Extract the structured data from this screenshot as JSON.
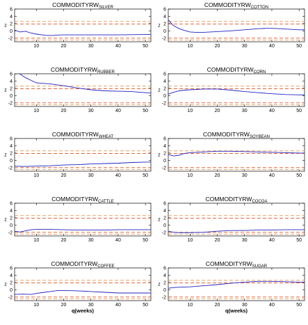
{
  "figure": {
    "yticks": [
      -2,
      0,
      2,
      4,
      6
    ],
    "xticks": [
      10,
      20,
      30,
      40,
      50
    ],
    "xlim": [
      2,
      52
    ],
    "ylim": [
      -3,
      6
    ],
    "colors": {
      "series": "#1f1fbf",
      "band_inner": "#d9531e",
      "band_outer": "#e7a066",
      "axes": "#000000"
    }
  },
  "chart_data": [
    {
      "type": "line",
      "title": "COMMODITYRW",
      "subtitle": "SILVER",
      "xlabel": "",
      "x": [
        2,
        4,
        6,
        8,
        10,
        12,
        14,
        16,
        18,
        20,
        25,
        30,
        35,
        40,
        45,
        50,
        52
      ],
      "y": [
        0.2,
        -0.3,
        -0.1,
        -0.6,
        -0.9,
        -1.1,
        -1.25,
        -1.25,
        -1.15,
        -1.1,
        -1.1,
        -1.1,
        -1.1,
        -1.1,
        -1.05,
        -1.0,
        -1.0
      ],
      "bands": [
        -2.5,
        -2.0,
        1.9,
        2.6
      ]
    },
    {
      "type": "line",
      "title": "COMMODITYRW",
      "subtitle": "COTTON",
      "xlabel": "",
      "x": [
        2,
        4,
        6,
        8,
        10,
        12,
        15,
        20,
        25,
        30,
        35,
        38,
        40,
        45,
        50,
        52
      ],
      "y": [
        3.0,
        1.4,
        0.6,
        0.1,
        -0.3,
        -0.4,
        -0.4,
        -0.2,
        0.0,
        0.3,
        0.6,
        0.7,
        0.7,
        0.5,
        0.3,
        0.3
      ],
      "bands": [
        -2.5,
        -2.0,
        1.9,
        2.6
      ]
    },
    {
      "type": "line",
      "title": "COMMODITYRW",
      "subtitle": "RUBBER",
      "xlabel": "",
      "x": [
        2,
        4,
        6,
        8,
        10,
        15,
        20,
        25,
        30,
        35,
        40,
        45,
        50,
        52
      ],
      "y": [
        6.8,
        5.9,
        4.9,
        4.2,
        3.5,
        3.2,
        2.7,
        2.1,
        1.6,
        1.3,
        1.2,
        1.1,
        0.8,
        0.7
      ],
      "bands": [
        -2.5,
        -2.0,
        1.9,
        2.6
      ]
    },
    {
      "type": "line",
      "title": "COMMODITYRW",
      "subtitle": "CORN",
      "xlabel": "",
      "x": [
        2,
        4,
        6,
        8,
        10,
        15,
        20,
        25,
        30,
        35,
        40,
        45,
        50,
        52
      ],
      "y": [
        0.4,
        0.9,
        1.3,
        1.5,
        1.6,
        1.8,
        1.8,
        1.5,
        1.1,
        0.8,
        0.5,
        0.3,
        0.2,
        0.2
      ],
      "bands": [
        -2.5,
        -2.0,
        1.9,
        2.6
      ]
    },
    {
      "type": "line",
      "title": "COMMODITYRW",
      "subtitle": "WHEAT",
      "xlabel": "",
      "x": [
        2,
        5,
        10,
        15,
        20,
        25,
        30,
        35,
        40,
        45,
        50,
        52
      ],
      "y": [
        -1.6,
        -1.7,
        -1.6,
        -1.5,
        -1.3,
        -1.2,
        -1.0,
        -0.9,
        -0.8,
        -0.6,
        -0.5,
        -0.5
      ],
      "bands": [
        -2.5,
        -2.0,
        1.9,
        2.6
      ]
    },
    {
      "type": "line",
      "title": "COMMODITYRW",
      "subtitle": "SOYBEAN",
      "xlabel": "",
      "x": [
        2,
        4,
        6,
        8,
        10,
        15,
        20,
        25,
        30,
        35,
        40,
        45,
        50,
        52
      ],
      "y": [
        1.6,
        1.2,
        1.4,
        1.9,
        2.1,
        2.3,
        2.5,
        2.5,
        2.4,
        2.3,
        2.2,
        2.1,
        2.0,
        2.0
      ],
      "bands": [
        -2.5,
        -2.0,
        1.9,
        2.6
      ]
    },
    {
      "type": "line",
      "title": "COMMODITYRW",
      "subtitle": "CATTLE",
      "xlabel": "",
      "x": [
        2,
        4,
        6,
        8,
        10,
        15,
        20,
        25,
        30,
        35,
        40,
        45,
        50,
        52
      ],
      "y": [
        -1.7,
        -1.9,
        -1.6,
        -1.3,
        -1.2,
        -1.2,
        -1.3,
        -1.4,
        -1.4,
        -1.4,
        -1.3,
        -1.3,
        -1.3,
        -1.3
      ],
      "bands": [
        -2.5,
        -2.0,
        1.9,
        2.6
      ]
    },
    {
      "type": "line",
      "title": "COMMODITYRW",
      "subtitle": "COCOA",
      "xlabel": "",
      "x": [
        2,
        4,
        6,
        8,
        10,
        15,
        20,
        25,
        30,
        35,
        40,
        45,
        50,
        52
      ],
      "y": [
        -1.7,
        -2.0,
        -2.1,
        -2.1,
        -2.1,
        -2.0,
        -1.7,
        -1.5,
        -1.5,
        -1.4,
        -1.4,
        -1.3,
        -1.3,
        -1.3
      ],
      "bands": [
        -2.5,
        -2.0,
        1.9,
        2.6
      ]
    },
    {
      "type": "line",
      "title": "COMMODITYRW",
      "subtitle": "COFFEE",
      "xlabel": "q(weeks)",
      "x": [
        2,
        5,
        8,
        10,
        12,
        15,
        18,
        20,
        25,
        30,
        35,
        40,
        45,
        50,
        52
      ],
      "y": [
        -1.3,
        -1.2,
        -1.3,
        -1.0,
        -0.8,
        -0.5,
        -0.2,
        -0.2,
        -0.3,
        -0.5,
        -0.7,
        -0.9,
        -0.9,
        -0.9,
        -0.9
      ],
      "bands": [
        -2.5,
        -2.0,
        1.9,
        2.6
      ]
    },
    {
      "type": "line",
      "title": "COMMODITYRW",
      "subtitle": "SUGAR",
      "xlabel": "q(weeks)",
      "x": [
        2,
        4,
        6,
        10,
        15,
        20,
        25,
        30,
        35,
        40,
        45,
        50,
        52
      ],
      "y": [
        0.4,
        0.6,
        0.7,
        0.8,
        1.1,
        1.4,
        1.8,
        2.1,
        2.3,
        2.3,
        2.2,
        2.1,
        2.1
      ],
      "bands": [
        -2.5,
        -2.0,
        1.9,
        2.6
      ]
    }
  ]
}
